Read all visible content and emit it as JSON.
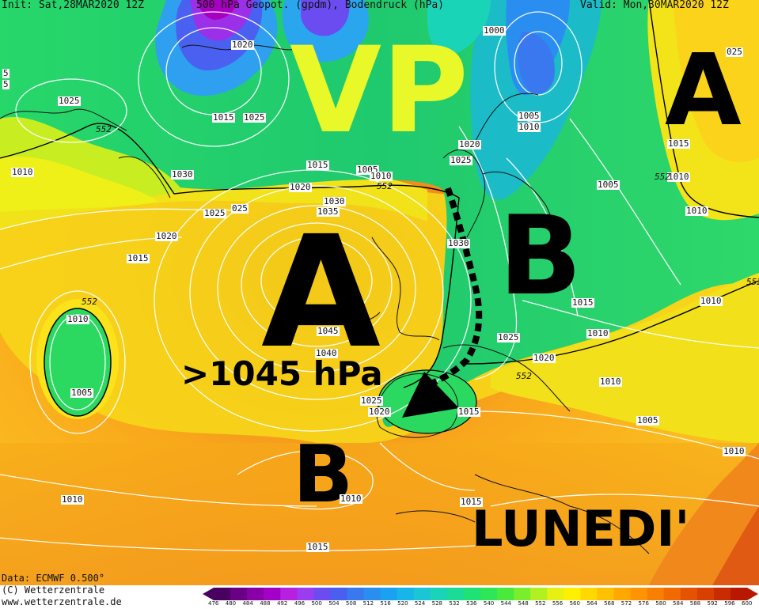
{
  "header": {
    "init": "Init: Sat,28MAR2020 12Z",
    "product": "500 hPa Geopot. (gpdm), Bodendruck (hPa)",
    "valid": "Valid: Mon,30MAR2020 12Z"
  },
  "annotations": {
    "vp": "VP",
    "high_main": "A",
    "high_ne": "A",
    "low_central": "B",
    "low_south": "B",
    "pressure_note": ">1045 hPa",
    "day": "LUNEDI'"
  },
  "isobars": [
    {
      "text": "1020"
    },
    {
      "text": "1025"
    },
    {
      "text": "1015"
    },
    {
      "text": "1025"
    },
    {
      "text": "1000"
    },
    {
      "text": "1005"
    },
    {
      "text": "1010"
    },
    {
      "text": "025"
    },
    {
      "text": "1015"
    },
    {
      "text": "1010"
    },
    {
      "text": "1030"
    },
    {
      "text": "1015"
    },
    {
      "text": "1020"
    },
    {
      "text": "1005"
    },
    {
      "text": "1010"
    },
    {
      "text": "1025"
    },
    {
      "text": "1020"
    },
    {
      "text": "1030"
    },
    {
      "text": "1035"
    },
    {
      "text": "1025"
    },
    {
      "text": "025"
    },
    {
      "text": "1020"
    },
    {
      "text": "1015"
    },
    {
      "text": "1010"
    },
    {
      "text": "1005"
    },
    {
      "text": "1030"
    },
    {
      "text": "1045"
    },
    {
      "text": "1040"
    },
    {
      "text": "1025"
    },
    {
      "text": "1020"
    },
    {
      "text": "1015"
    },
    {
      "text": "1025"
    },
    {
      "text": "1020"
    },
    {
      "text": "1015"
    },
    {
      "text": "1010"
    },
    {
      "text": "1010"
    },
    {
      "text": "1005"
    },
    {
      "text": "1010"
    },
    {
      "text": "1010"
    },
    {
      "text": "1010"
    },
    {
      "text": "1015"
    },
    {
      "text": "1015"
    },
    {
      "text": "1010"
    },
    {
      "text": "1005"
    },
    {
      "text": "1010"
    },
    {
      "text": "1010"
    },
    {
      "text": "5"
    },
    {
      "text": "5"
    }
  ],
  "geopotential_labels": [
    "552",
    "552",
    "552",
    "552",
    "552",
    "552"
  ],
  "footer": {
    "data": "Data: ECMWF  0.500°",
    "copyright": "(C) Wetterzentrale",
    "url": "www.wetterzentrale.de"
  },
  "legend": {
    "ticks": [
      "476",
      "480",
      "484",
      "488",
      "492",
      "496",
      "500",
      "504",
      "508",
      "512",
      "516",
      "520",
      "524",
      "528",
      "532",
      "536",
      "540",
      "544",
      "548",
      "552",
      "556",
      "560",
      "564",
      "568",
      "572",
      "576",
      "580",
      "584",
      "588",
      "592",
      "596",
      "600"
    ],
    "colors": [
      "#4a0060",
      "#6a0085",
      "#8a00a8",
      "#a300c8",
      "#b820e0",
      "#9a3cf0",
      "#6a4cf0",
      "#4a5ef0",
      "#3a78f0",
      "#2a8ef0",
      "#1aa2f0",
      "#18b6e8",
      "#1ac6d6",
      "#1ad4b8",
      "#1adc96",
      "#1ee274",
      "#2ee656",
      "#4aea3c",
      "#7aee2c",
      "#b2f022",
      "#e6f014",
      "#fff000",
      "#ffd800",
      "#ffc000",
      "#ffa800",
      "#ff9400",
      "#f88000",
      "#f06a00",
      "#e45400",
      "#d84000",
      "#c82c00",
      "#b81800"
    ]
  },
  "symbols": {
    "trough_line": "dotted-black-line",
    "arrow": "black-triangle-arrowhead"
  }
}
